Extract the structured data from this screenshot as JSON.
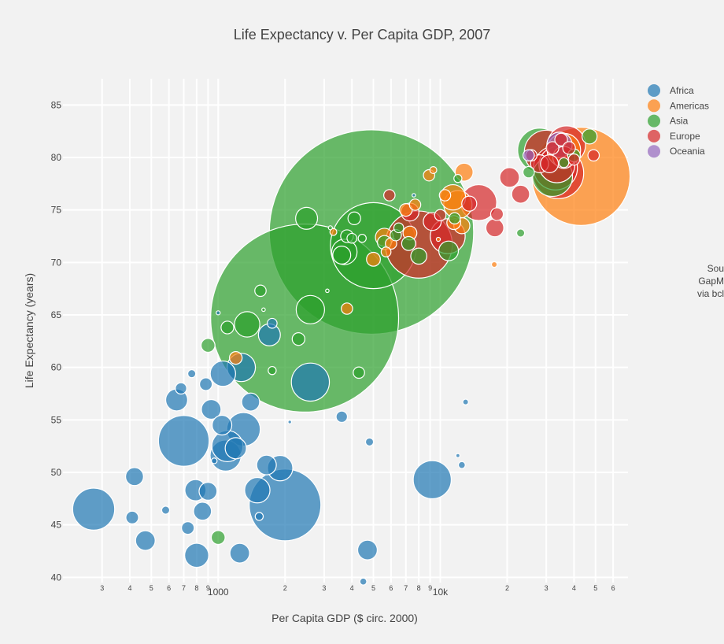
{
  "chart_data": {
    "type": "scatter",
    "title": "Life Expectancy v. Per Capita GDP, 2007",
    "xlabel": "Per Capita GDP ($ circ. 2000)",
    "ylabel": "Life Expectancy (years)",
    "x_scale": "log",
    "xlim": [
      200,
      70000
    ],
    "ylim": [
      39.5,
      87.5
    ],
    "grid": true,
    "legend_position": "top-right",
    "source_note": [
      "Sou",
      "GapM",
      "via bcl"
    ],
    "x_ticks": [
      {
        "value": 300,
        "label": "3",
        "major": false
      },
      {
        "value": 400,
        "label": "4",
        "major": false
      },
      {
        "value": 500,
        "label": "5",
        "major": false
      },
      {
        "value": 600,
        "label": "6",
        "major": false
      },
      {
        "value": 700,
        "label": "7",
        "major": false
      },
      {
        "value": 800,
        "label": "8",
        "major": false
      },
      {
        "value": 900,
        "label": "9",
        "major": false
      },
      {
        "value": 1000,
        "label": "1000",
        "major": true
      },
      {
        "value": 2000,
        "label": "2",
        "major": false
      },
      {
        "value": 3000,
        "label": "3",
        "major": false
      },
      {
        "value": 4000,
        "label": "4",
        "major": false
      },
      {
        "value": 5000,
        "label": "5",
        "major": false
      },
      {
        "value": 6000,
        "label": "6",
        "major": false
      },
      {
        "value": 7000,
        "label": "7",
        "major": false
      },
      {
        "value": 8000,
        "label": "8",
        "major": false
      },
      {
        "value": 9000,
        "label": "9",
        "major": false
      },
      {
        "value": 10000,
        "label": "10k",
        "major": true
      },
      {
        "value": 20000,
        "label": "2",
        "major": false
      },
      {
        "value": 30000,
        "label": "3",
        "major": false
      },
      {
        "value": 40000,
        "label": "4",
        "major": false
      },
      {
        "value": 50000,
        "label": "5",
        "major": false
      },
      {
        "value": 60000,
        "label": "6",
        "major": false
      }
    ],
    "y_ticks": [
      40,
      45,
      50,
      55,
      60,
      65,
      70,
      75,
      80,
      85
    ],
    "series": [
      {
        "name": "Africa",
        "color": "#1f77b4",
        "points": [
          [
            275,
            46.5,
            55
          ],
          [
            420,
            49.6,
            10
          ],
          [
            410,
            45.7,
            5
          ],
          [
            470,
            43.5,
            12
          ],
          [
            580,
            46.4,
            2
          ],
          [
            650,
            56.9,
            15
          ],
          [
            680,
            58.0,
            4
          ],
          [
            700,
            53.0,
            80
          ],
          [
            730,
            44.7,
            5
          ],
          [
            760,
            59.4,
            2
          ],
          [
            790,
            48.3,
            14
          ],
          [
            800,
            42.1,
            18
          ],
          [
            850,
            46.3,
            10
          ],
          [
            880,
            58.4,
            5
          ],
          [
            900,
            48.2,
            10
          ],
          [
            930,
            56.0,
            12
          ],
          [
            960,
            51.1,
            1
          ],
          [
            1000,
            65.2,
            0.5
          ],
          [
            1040,
            54.5,
            12
          ],
          [
            1050,
            59.4,
            20
          ],
          [
            1080,
            51.6,
            30
          ],
          [
            1100,
            52.5,
            30
          ],
          [
            1200,
            52.3,
            14
          ],
          [
            1250,
            42.3,
            12
          ],
          [
            1270,
            60.0,
            25
          ],
          [
            1300,
            54.1,
            35
          ],
          [
            1400,
            56.7,
            10
          ],
          [
            1500,
            48.3,
            20
          ],
          [
            1530,
            45.8,
            2
          ],
          [
            1650,
            50.7,
            12
          ],
          [
            1700,
            63.1,
            15
          ],
          [
            1750,
            64.2,
            3
          ],
          [
            1900,
            50.4,
            20
          ],
          [
            2000,
            46.9,
            160
          ],
          [
            2100,
            54.8,
            0.4
          ],
          [
            2600,
            58.6,
            45
          ],
          [
            3600,
            55.3,
            4
          ],
          [
            4500,
            39.6,
            1.5
          ],
          [
            4700,
            42.6,
            12
          ],
          [
            4800,
            52.9,
            2
          ],
          [
            9200,
            49.3,
            45
          ],
          [
            12000,
            51.6,
            0.5
          ],
          [
            12500,
            50.7,
            1.5
          ],
          [
            13000,
            56.7,
            1
          ],
          [
            7600,
            76.4,
            0.3
          ]
        ]
      },
      {
        "name": "Americas",
        "color": "#ff7f0e",
        "points": [
          [
            1200,
            60.9,
            5
          ],
          [
            3300,
            72.9,
            1.5
          ],
          [
            3800,
            65.6,
            4
          ],
          [
            5000,
            70.3,
            6
          ],
          [
            5600,
            72.4,
            10
          ],
          [
            5700,
            71.0,
            3
          ],
          [
            6000,
            71.8,
            4
          ],
          [
            7000,
            75.0,
            5
          ],
          [
            7300,
            72.8,
            6
          ],
          [
            7700,
            75.5,
            4
          ],
          [
            8900,
            78.3,
            4
          ],
          [
            9300,
            78.8,
            1.5
          ],
          [
            9800,
            72.2,
            0.5
          ],
          [
            10500,
            76.4,
            4
          ],
          [
            11400,
            76.2,
            20
          ],
          [
            12000,
            75.5,
            25
          ],
          [
            12800,
            78.6,
            10
          ],
          [
            11500,
            73.8,
            6
          ],
          [
            12500,
            73.5,
            8
          ],
          [
            17500,
            69.8,
            1
          ],
          [
            36000,
            80.7,
            35
          ],
          [
            43000,
            78.2,
            300
          ]
        ]
      },
      {
        "name": "Asia",
        "color": "#2ca02c",
        "points": [
          [
            900,
            62.1,
            6
          ],
          [
            1000,
            43.8,
            6
          ],
          [
            1100,
            63.8,
            5
          ],
          [
            1350,
            64.1,
            20
          ],
          [
            1550,
            67.3,
            4
          ],
          [
            1600,
            65.5,
            0.2
          ],
          [
            1750,
            59.7,
            2
          ],
          [
            2450,
            64.7,
            1100
          ],
          [
            2500,
            74.2,
            15
          ],
          [
            2600,
            65.5,
            25
          ],
          [
            2300,
            62.7,
            5
          ],
          [
            3100,
            67.3,
            0.2
          ],
          [
            3200,
            73.3,
            0.5
          ],
          [
            3600,
            70.7,
            10
          ],
          [
            3700,
            71.0,
            20
          ],
          [
            3800,
            72.5,
            5
          ],
          [
            4000,
            72.3,
            3
          ],
          [
            4100,
            74.2,
            5
          ],
          [
            4450,
            72.3,
            2
          ],
          [
            4300,
            59.5,
            4
          ],
          [
            4900,
            72.9,
            1300
          ],
          [
            5000,
            71.6,
            230
          ],
          [
            5600,
            71.9,
            6
          ],
          [
            6300,
            72.6,
            4
          ],
          [
            6500,
            73.3,
            3
          ],
          [
            7200,
            71.8,
            6
          ],
          [
            8000,
            70.6,
            8
          ],
          [
            10900,
            71.1,
            12
          ],
          [
            11600,
            74.2,
            4
          ],
          [
            12000,
            78.0,
            2
          ],
          [
            23000,
            72.8,
            2
          ],
          [
            25000,
            78.6,
            4
          ],
          [
            28000,
            80.7,
            60
          ],
          [
            32000,
            78.2,
            50
          ],
          [
            36000,
            79.5,
            3
          ],
          [
            40000,
            80.2,
            5
          ],
          [
            47000,
            82.0,
            7
          ]
        ]
      },
      {
        "name": "Europe",
        "color": "#d62728",
        "points": [
          [
            5900,
            76.4,
            4
          ],
          [
            7300,
            74.8,
            10
          ],
          [
            8000,
            71.7,
            140
          ],
          [
            9200,
            73.9,
            10
          ],
          [
            10000,
            74.5,
            4
          ],
          [
            10800,
            72.5,
            38
          ],
          [
            13500,
            75.6,
            7
          ],
          [
            14900,
            75.7,
            40
          ],
          [
            17600,
            73.3,
            10
          ],
          [
            18000,
            74.6,
            5
          ],
          [
            20500,
            78.1,
            12
          ],
          [
            23000,
            76.5,
            10
          ],
          [
            25700,
            80.2,
            4
          ],
          [
            28000,
            79.4,
            10
          ],
          [
            30000,
            80.5,
            60
          ],
          [
            31000,
            79.4,
            10
          ],
          [
            32000,
            80.9,
            5
          ],
          [
            33000,
            79.0,
            60
          ],
          [
            33500,
            79.3,
            40
          ],
          [
            34000,
            78.5,
            80
          ],
          [
            35000,
            81.7,
            5
          ],
          [
            36000,
            80.0,
            15
          ],
          [
            37000,
            81.2,
            45
          ],
          [
            38000,
            80.9,
            5
          ],
          [
            40000,
            79.8,
            4
          ],
          [
            49000,
            80.2,
            4
          ]
        ]
      },
      {
        "name": "Oceania",
        "color": "#9467bd",
        "points": [
          [
            25000,
            80.2,
            4
          ],
          [
            34400,
            81.2,
            20
          ]
        ]
      }
    ]
  }
}
